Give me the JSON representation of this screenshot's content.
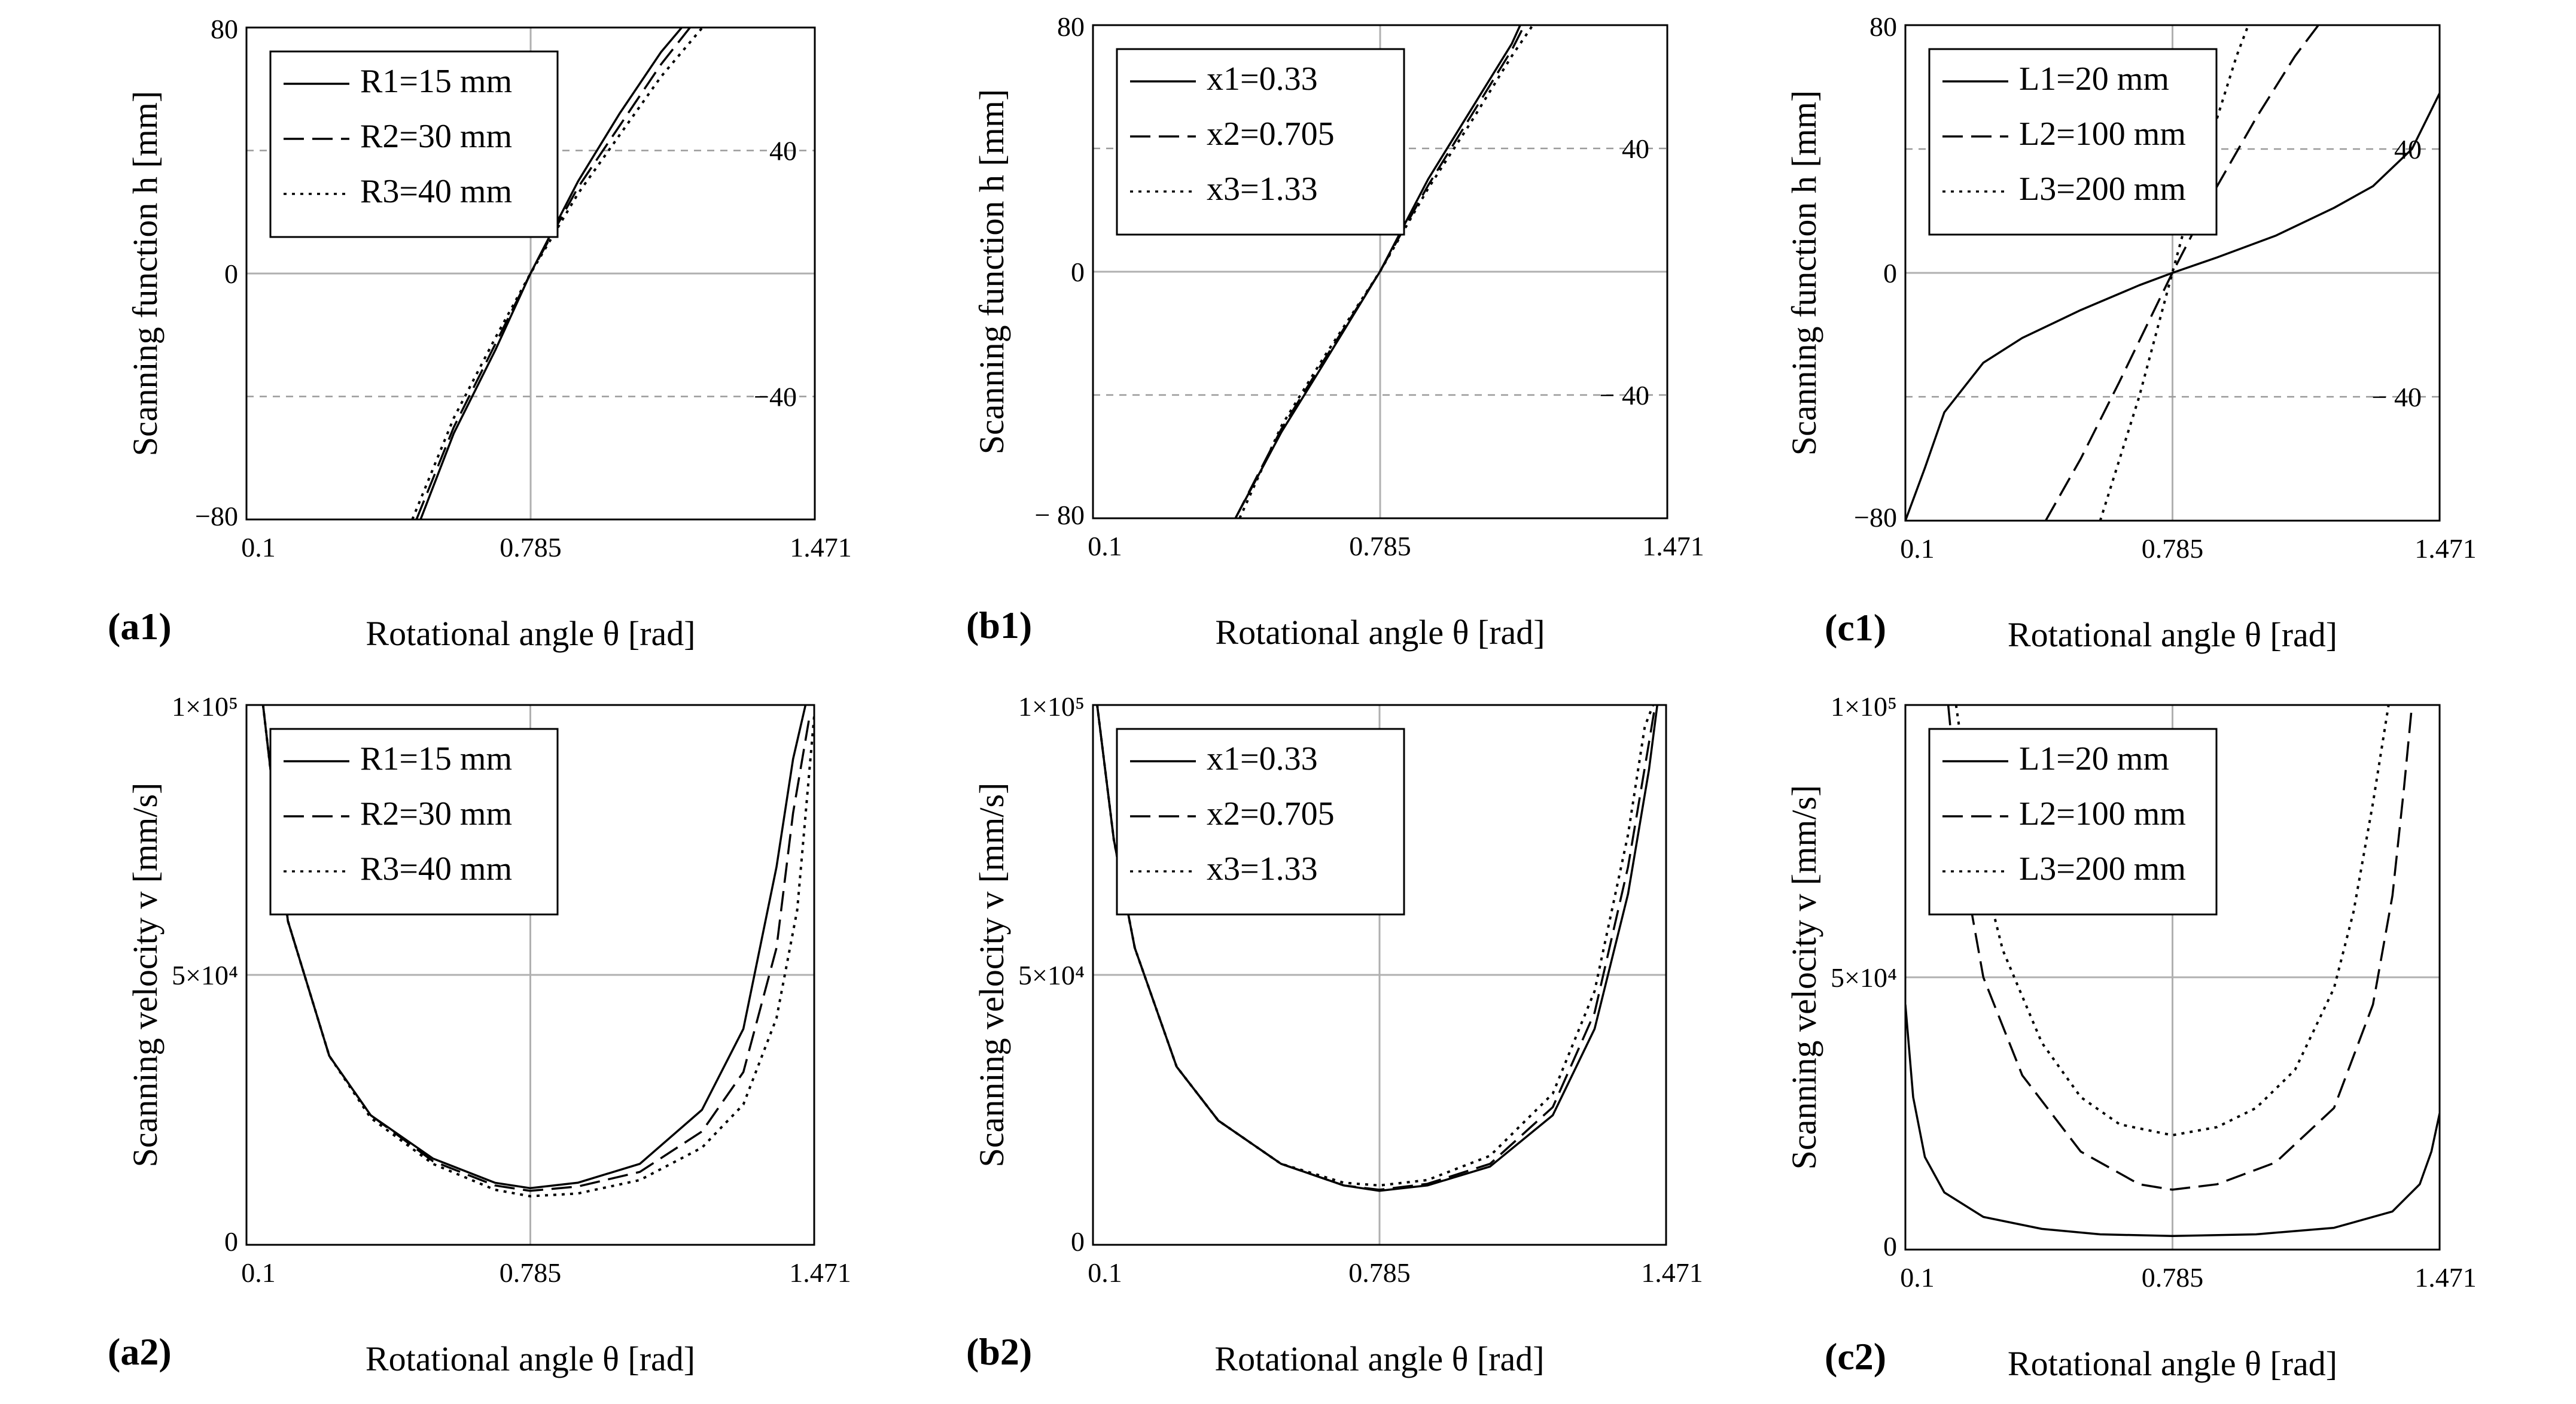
{
  "figure": {
    "panels": [
      {
        "label": "(a1)",
        "ylabel": "Scanning function h [mm]",
        "xlabel": "Rotational angle  θ [rad]"
      },
      {
        "label": "(b1)",
        "ylabel": "Scanning function h [mm]",
        "xlabel": "Rotational angle   θ [rad]"
      },
      {
        "label": "(c1)",
        "ylabel": "Scanning function h [mm]",
        "xlabel": "Rotational angle θ [rad]"
      },
      {
        "label": "(a2)",
        "ylabel": "Scanning velocity  v  [mm/s]",
        "xlabel": "Rotational angle  θ [rad]"
      },
      {
        "label": "(b2)",
        "ylabel": "Scanning velocity  v  [mm/s]",
        "xlabel": "Rotational angle   θ [rad]"
      },
      {
        "label": "(c2)",
        "ylabel": "Scanning velocity  v  [mm/s]",
        "xlabel": "Rotational angle θ [rad]"
      }
    ]
  },
  "chart_data": [
    {
      "id": "a1",
      "type": "line",
      "title": "",
      "xlabel": "Rotational angle θ [rad]",
      "ylabel": "Scanning function h [mm]",
      "xlim": [
        0.1,
        1.471
      ],
      "ylim": [
        -80,
        80
      ],
      "xticks": [
        "0.1",
        "0.785",
        "1.471"
      ],
      "yticks": [
        "−80",
        "0",
        "80"
      ],
      "ref_lines": [
        "40",
        "−40"
      ],
      "legend": "top-left",
      "grid": "center lines",
      "series": [
        {
          "name": "R1=15 mm",
          "style": "solid",
          "x": [
            0.52,
            0.6,
            0.7,
            0.785,
            0.9,
            1.0,
            1.1,
            1.15
          ],
          "y": [
            -80,
            -52,
            -25,
            0,
            30,
            52,
            72,
            80
          ]
        },
        {
          "name": "R2=30 mm",
          "style": "dashed",
          "x": [
            0.51,
            0.6,
            0.7,
            0.785,
            0.9,
            1.0,
            1.1,
            1.17
          ],
          "y": [
            -80,
            -50,
            -23,
            0,
            28,
            48,
            68,
            80
          ]
        },
        {
          "name": "R3=40 mm",
          "style": "dotted",
          "x": [
            0.5,
            0.6,
            0.7,
            0.785,
            0.9,
            1.0,
            1.1,
            1.2
          ],
          "y": [
            -80,
            -47,
            -21,
            0,
            26,
            45,
            64,
            80
          ]
        }
      ]
    },
    {
      "id": "b1",
      "type": "line",
      "title": "",
      "xlabel": "Rotational angle θ [rad]",
      "ylabel": "Scanning function h [mm]",
      "xlim": [
        0.1,
        1.471
      ],
      "ylim": [
        -80,
        80
      ],
      "xticks": [
        "0.1",
        "0.785",
        "1.471"
      ],
      "yticks": [
        "− 80",
        "0",
        "80"
      ],
      "ref_lines": [
        "40",
        "− 40"
      ],
      "legend": "top-left",
      "grid": "center lines",
      "series": [
        {
          "name": "x1=0.33",
          "style": "solid",
          "x": [
            0.44,
            0.55,
            0.65,
            0.785,
            0.9,
            1.0,
            1.1,
            1.12
          ],
          "y": [
            -80,
            -52,
            -30,
            0,
            30,
            52,
            74,
            80
          ]
        },
        {
          "name": "x2=0.705",
          "style": "dashed",
          "x": [
            0.44,
            0.55,
            0.65,
            0.785,
            0.9,
            1.0,
            1.1,
            1.13
          ],
          "y": [
            -80,
            -51,
            -29,
            0,
            28,
            50,
            72,
            80
          ]
        },
        {
          "name": "x3=1.33",
          "style": "dotted",
          "x": [
            0.45,
            0.55,
            0.65,
            0.785,
            0.9,
            1.0,
            1.1,
            1.15
          ],
          "y": [
            -80,
            -50,
            -28,
            0,
            27,
            48,
            70,
            80
          ]
        }
      ]
    },
    {
      "id": "c1",
      "type": "line",
      "title": "",
      "xlabel": "Rotational angle θ [rad]",
      "ylabel": "Scanning function h [mm]",
      "xlim": [
        0.1,
        1.471
      ],
      "ylim": [
        -80,
        80
      ],
      "xticks": [
        "0.1",
        "0.785",
        "1.471"
      ],
      "yticks": [
        "−80",
        "0",
        "80"
      ],
      "ref_lines": [
        "40",
        "− 40"
      ],
      "legend": "top-left",
      "grid": "center lines",
      "series": [
        {
          "name": "L1=20 mm",
          "style": "solid",
          "x": [
            0.1,
            0.15,
            0.2,
            0.3,
            0.4,
            0.55,
            0.7,
            0.785,
            0.9,
            1.05,
            1.2,
            1.3,
            1.4,
            1.471
          ],
          "y": [
            -80,
            -63,
            -45,
            -29,
            -21,
            -12,
            -4,
            0,
            5,
            12,
            21,
            28,
            40,
            58
          ]
        },
        {
          "name": "L2=100 mm",
          "style": "dashed",
          "x": [
            0.46,
            0.55,
            0.65,
            0.785,
            0.9,
            1.0,
            1.1,
            1.16
          ],
          "y": [
            -80,
            -60,
            -35,
            0,
            28,
            50,
            70,
            80
          ]
        },
        {
          "name": "L3=200 mm",
          "style": "dotted",
          "x": [
            0.6,
            0.7,
            0.785,
            0.85,
            0.95,
            0.98
          ],
          "y": [
            -80,
            -40,
            0,
            30,
            70,
            80
          ]
        }
      ]
    },
    {
      "id": "a2",
      "type": "line",
      "title": "",
      "xlabel": "Rotational angle θ [rad]",
      "ylabel": "Scanning velocity v [mm/s]",
      "xlim": [
        0.1,
        1.471
      ],
      "ylim": [
        0,
        100000
      ],
      "xticks": [
        "0.1",
        "0.785",
        "1.471"
      ],
      "yticks": [
        "0",
        "5×10⁴",
        "1×10⁵"
      ],
      "legend": "top-left",
      "grid": "center lines",
      "series": [
        {
          "name": "R1=15 mm",
          "style": "solid",
          "x": [
            0.14,
            0.2,
            0.3,
            0.4,
            0.55,
            0.7,
            0.785,
            0.9,
            1.05,
            1.2,
            1.3,
            1.38,
            1.42,
            1.45
          ],
          "y": [
            100000,
            60000,
            35000,
            24000,
            16000,
            11500,
            10500,
            11500,
            15000,
            25000,
            40000,
            70000,
            90000,
            100000
          ]
        },
        {
          "name": "R2=30 mm",
          "style": "dashed",
          "x": [
            0.14,
            0.2,
            0.3,
            0.4,
            0.55,
            0.7,
            0.785,
            0.9,
            1.05,
            1.2,
            1.3,
            1.38,
            1.42,
            1.46
          ],
          "y": [
            100000,
            60000,
            35000,
            24000,
            15500,
            11000,
            10000,
            10800,
            13500,
            21000,
            32000,
            55000,
            80000,
            98000
          ]
        },
        {
          "name": "R3=40 mm",
          "style": "dotted",
          "x": [
            0.14,
            0.2,
            0.3,
            0.4,
            0.55,
            0.7,
            0.785,
            0.9,
            1.05,
            1.2,
            1.3,
            1.38,
            1.43,
            1.471
          ],
          "y": [
            100000,
            60000,
            35000,
            23500,
            15000,
            10200,
            9000,
            9500,
            12000,
            18000,
            26000,
            42000,
            62000,
            98000
          ]
        }
      ]
    },
    {
      "id": "b2",
      "type": "line",
      "title": "",
      "xlabel": "Rotational angle θ [rad]",
      "ylabel": "Scanning velocity v [mm/s]",
      "xlim": [
        0.1,
        1.471
      ],
      "ylim": [
        0,
        100000
      ],
      "xticks": [
        "0.1",
        "0.785",
        "1.471"
      ],
      "yticks": [
        "0",
        "5×10⁴",
        "1×10⁵"
      ],
      "legend": "top-left",
      "grid": "center lines",
      "series": [
        {
          "name": "x1=0.33",
          "style": "solid",
          "x": [
            0.11,
            0.15,
            0.2,
            0.3,
            0.4,
            0.55,
            0.7,
            0.785,
            0.9,
            1.05,
            1.2,
            1.3,
            1.38,
            1.43,
            1.45
          ],
          "y": [
            100000,
            75000,
            55000,
            33000,
            23000,
            15000,
            11000,
            10000,
            11000,
            14500,
            24000,
            40000,
            65000,
            88000,
            100000
          ]
        },
        {
          "name": "x2=0.705",
          "style": "dashed",
          "x": [
            0.11,
            0.15,
            0.2,
            0.3,
            0.4,
            0.55,
            0.7,
            0.785,
            0.9,
            1.05,
            1.2,
            1.3,
            1.38,
            1.43,
            1.445
          ],
          "y": [
            100000,
            75000,
            55000,
            33000,
            23000,
            15000,
            11000,
            10200,
            11300,
            15000,
            25500,
            43000,
            70000,
            93000,
            100000
          ]
        },
        {
          "name": "x3=1.33",
          "style": "dotted",
          "x": [
            0.11,
            0.15,
            0.2,
            0.3,
            0.4,
            0.55,
            0.7,
            0.785,
            0.9,
            1.05,
            1.2,
            1.3,
            1.38,
            1.42,
            1.44
          ],
          "y": [
            100000,
            75000,
            55000,
            33000,
            23000,
            15000,
            11500,
            11000,
            12000,
            16500,
            28000,
            47000,
            76000,
            96000,
            100000
          ]
        }
      ]
    },
    {
      "id": "c2",
      "type": "line",
      "title": "",
      "xlabel": "Rotational angle θ [rad]",
      "ylabel": "Scanning velocity v [mm/s]",
      "xlim": [
        0.1,
        1.471
      ],
      "ylim": [
        0,
        100000
      ],
      "xticks": [
        "0.1",
        "0.785",
        "1.471"
      ],
      "yticks": [
        "0",
        "5×10⁴",
        "1×10⁵"
      ],
      "legend": "top-left",
      "grid": "center lines",
      "series": [
        {
          "name": "L1=20 mm",
          "style": "solid",
          "x": [
            0.1,
            0.12,
            0.15,
            0.2,
            0.3,
            0.45,
            0.6,
            0.785,
            1.0,
            1.2,
            1.35,
            1.42,
            1.45,
            1.471
          ],
          "y": [
            45000,
            28000,
            17000,
            10500,
            6000,
            3800,
            2800,
            2500,
            2800,
            4000,
            7000,
            12000,
            18000,
            25000
          ]
        },
        {
          "name": "L2=100 mm",
          "style": "dashed",
          "x": [
            0.21,
            0.25,
            0.3,
            0.4,
            0.55,
            0.7,
            0.785,
            0.9,
            1.05,
            1.2,
            1.3,
            1.35,
            1.38,
            1.4
          ],
          "y": [
            100000,
            70000,
            50000,
            32000,
            18000,
            12000,
            11000,
            12000,
            16000,
            26000,
            45000,
            65000,
            85000,
            100000
          ]
        },
        {
          "name": "L3=200 mm",
          "style": "dotted",
          "x": [
            0.23,
            0.28,
            0.35,
            0.45,
            0.55,
            0.65,
            0.785,
            0.9,
            1.0,
            1.1,
            1.2,
            1.25,
            1.3,
            1.34
          ],
          "y": [
            100000,
            75000,
            55000,
            38000,
            28000,
            23000,
            21000,
            22500,
            26000,
            33000,
            48000,
            62000,
            82000,
            100000
          ]
        }
      ]
    }
  ]
}
